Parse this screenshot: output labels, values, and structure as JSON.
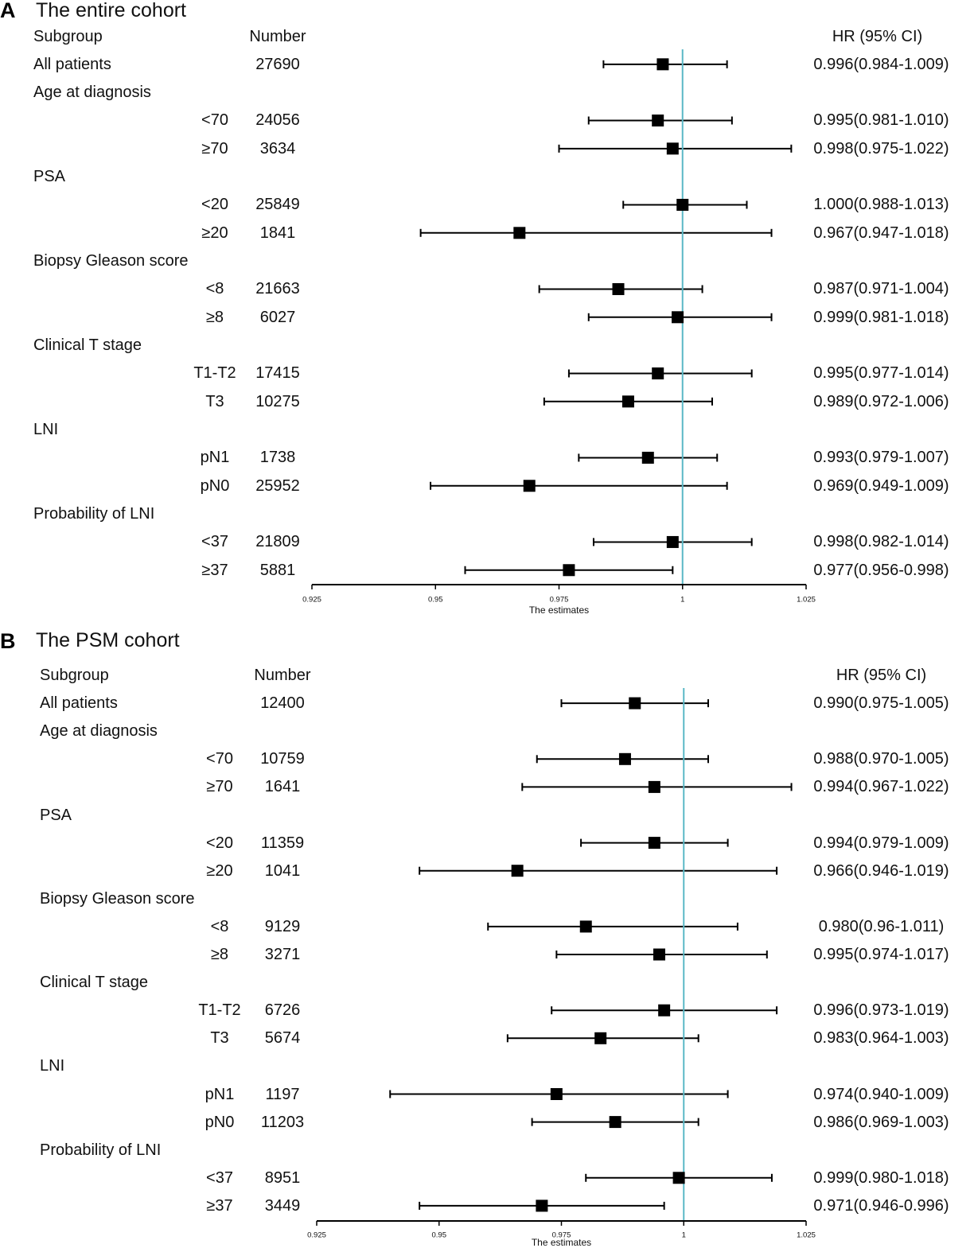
{
  "colors": {
    "reference_line": "#5ab8c6",
    "marker": "#000000",
    "axis": "#000000"
  },
  "chart_data": [
    {
      "type": "scatter",
      "panel": "A",
      "title": "The entire cohort",
      "columns": {
        "subgroup": "Subgroup",
        "number": "Number",
        "estimate": "HR (95% CI)"
      },
      "xlabel": "The estimates",
      "xlim": [
        0.925,
        1.025
      ],
      "xticks": [
        0.925,
        0.95,
        0.975,
        1,
        1.025
      ],
      "reference_value": 1,
      "overall": {
        "label": "All patients",
        "n": 27690,
        "hr": 0.996,
        "lower": 0.984,
        "upper": 1.009,
        "hr_text": "0.996(0.984-1.009)"
      },
      "groups": [
        {
          "name": "Age at diagnosis",
          "items": [
            {
              "label": "<70",
              "n": 24056,
              "hr": 0.995,
              "lower": 0.981,
              "upper": 1.01,
              "hr_text": "0.995(0.981-1.010)"
            },
            {
              "label": "≥70",
              "n": 3634,
              "hr": 0.998,
              "lower": 0.975,
              "upper": 1.022,
              "hr_text": "0.998(0.975-1.022)"
            }
          ]
        },
        {
          "name": "PSA",
          "items": [
            {
              "label": "<20",
              "n": 25849,
              "hr": 1.0,
              "lower": 0.988,
              "upper": 1.013,
              "hr_text": "1.000(0.988-1.013)"
            },
            {
              "label": "≥20",
              "n": 1841,
              "hr": 0.967,
              "lower": 0.947,
              "upper": 1.018,
              "hr_text": "0.967(0.947-1.018)"
            }
          ]
        },
        {
          "name": "Biopsy Gleason score",
          "items": [
            {
              "label": "<8",
              "n": 21663,
              "hr": 0.987,
              "lower": 0.971,
              "upper": 1.004,
              "hr_text": "0.987(0.971-1.004)"
            },
            {
              "label": "≥8",
              "n": 6027,
              "hr": 0.999,
              "lower": 0.981,
              "upper": 1.018,
              "hr_text": "0.999(0.981-1.018)"
            }
          ]
        },
        {
          "name": "Clinical T stage",
          "items": [
            {
              "label": "T1-T2",
              "n": 17415,
              "hr": 0.995,
              "lower": 0.977,
              "upper": 1.014,
              "hr_text": "0.995(0.977-1.014)"
            },
            {
              "label": "T3",
              "n": 10275,
              "hr": 0.989,
              "lower": 0.972,
              "upper": 1.006,
              "hr_text": "0.989(0.972-1.006)"
            }
          ]
        },
        {
          "name": "LNI",
          "items": [
            {
              "label": "pN1",
              "n": 1738,
              "hr": 0.993,
              "lower": 0.979,
              "upper": 1.007,
              "hr_text": "0.993(0.979-1.007)"
            },
            {
              "label": "pN0",
              "n": 25952,
              "hr": 0.969,
              "lower": 0.949,
              "upper": 1.009,
              "hr_text": "0.969(0.949-1.009)"
            }
          ]
        },
        {
          "name": "Probability of LNI",
          "items": [
            {
              "label": "<37",
              "n": 21809,
              "hr": 0.998,
              "lower": 0.982,
              "upper": 1.014,
              "hr_text": "0.998(0.982-1.014)"
            },
            {
              "label": "≥37",
              "n": 5881,
              "hr": 0.977,
              "lower": 0.956,
              "upper": 0.998,
              "hr_text": "0.977(0.956-0.998)"
            }
          ]
        }
      ]
    },
    {
      "type": "scatter",
      "panel": "B",
      "title": "The PSM cohort",
      "columns": {
        "subgroup": "Subgroup",
        "number": "Number",
        "estimate": "HR (95% CI)"
      },
      "xlabel": "The estimates",
      "xlim": [
        0.925,
        1.025
      ],
      "xticks": [
        0.925,
        0.95,
        0.975,
        1,
        1.025
      ],
      "reference_value": 1,
      "overall": {
        "label": "All patients",
        "n": 12400,
        "hr": 0.99,
        "lower": 0.975,
        "upper": 1.005,
        "hr_text": "0.990(0.975-1.005)"
      },
      "groups": [
        {
          "name": "Age at diagnosis",
          "items": [
            {
              "label": "<70",
              "n": 10759,
              "hr": 0.988,
              "lower": 0.97,
              "upper": 1.005,
              "hr_text": "0.988(0.970-1.005)"
            },
            {
              "label": "≥70",
              "n": 1641,
              "hr": 0.994,
              "lower": 0.967,
              "upper": 1.022,
              "hr_text": "0.994(0.967-1.022)"
            }
          ]
        },
        {
          "name": "PSA",
          "items": [
            {
              "label": "<20",
              "n": 11359,
              "hr": 0.994,
              "lower": 0.979,
              "upper": 1.009,
              "hr_text": "0.994(0.979-1.009)"
            },
            {
              "label": "≥20",
              "n": 1041,
              "hr": 0.966,
              "lower": 0.946,
              "upper": 1.019,
              "hr_text": "0.966(0.946-1.019)"
            }
          ]
        },
        {
          "name": "Biopsy Gleason score",
          "items": [
            {
              "label": "<8",
              "n": 9129,
              "hr": 0.98,
              "lower": 0.96,
              "upper": 1.011,
              "hr_text": "0.980(0.96-1.011)"
            },
            {
              "label": "≥8",
              "n": 3271,
              "hr": 0.995,
              "lower": 0.974,
              "upper": 1.017,
              "hr_text": "0.995(0.974-1.017)"
            }
          ]
        },
        {
          "name": "Clinical T stage",
          "items": [
            {
              "label": "T1-T2",
              "n": 6726,
              "hr": 0.996,
              "lower": 0.973,
              "upper": 1.019,
              "hr_text": "0.996(0.973-1.019)"
            },
            {
              "label": "T3",
              "n": 5674,
              "hr": 0.983,
              "lower": 0.964,
              "upper": 1.003,
              "hr_text": "0.983(0.964-1.003)"
            }
          ]
        },
        {
          "name": "LNI",
          "items": [
            {
              "label": "pN1",
              "n": 1197,
              "hr": 0.974,
              "lower": 0.94,
              "upper": 1.009,
              "hr_text": "0.974(0.940-1.009)"
            },
            {
              "label": "pN0",
              "n": 11203,
              "hr": 0.986,
              "lower": 0.969,
              "upper": 1.003,
              "hr_text": "0.986(0.969-1.003)"
            }
          ]
        },
        {
          "name": "Probability of LNI",
          "items": [
            {
              "label": "<37",
              "n": 8951,
              "hr": 0.999,
              "lower": 0.98,
              "upper": 1.018,
              "hr_text": "0.999(0.980-1.018)"
            },
            {
              "label": "≥37",
              "n": 3449,
              "hr": 0.971,
              "lower": 0.946,
              "upper": 0.996,
              "hr_text": "0.971(0.946-0.996)"
            }
          ]
        }
      ]
    }
  ]
}
